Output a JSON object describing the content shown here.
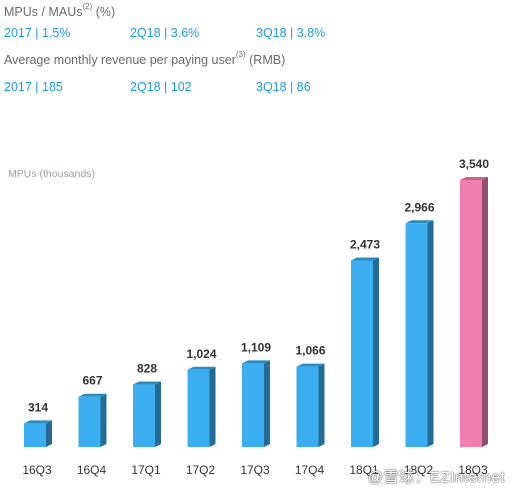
{
  "header": {
    "metric1_label": "MPUs / MAUs",
    "metric1_sup": "(2)",
    "metric1_unit": "(%)",
    "metric1_values": [
      "2017 | 1.5%",
      "2Q18 | 3.6%",
      "3Q18 | 3.8%"
    ],
    "metric2_label": "Average monthly revenue per paying user",
    "metric2_sup": "(3)",
    "metric2_unit": "(RMB)",
    "metric2_values": [
      "2017 | 185",
      "2Q18 | 102",
      "3Q18 | 86"
    ]
  },
  "watermark": "@雪球：EZInternet",
  "colors": {
    "bar": "#3aaef0",
    "highlight": "#f07fb0",
    "accent_text": "#1e9be0"
  },
  "chart_data": {
    "type": "bar",
    "ylabel": "MPUs (thousands)",
    "categories": [
      "16Q3",
      "16Q4",
      "17Q1",
      "17Q2",
      "17Q3",
      "17Q4",
      "18Q1",
      "18Q2",
      "18Q3"
    ],
    "values": [
      314,
      667,
      828,
      1024,
      1109,
      1066,
      2473,
      2966,
      3540
    ],
    "data_labels": [
      "314",
      "667",
      "828",
      "1,024",
      "1,109",
      "1,066",
      "2,473",
      "2,966",
      "3,540"
    ],
    "highlight_index": 8,
    "ylim": [
      0,
      3540
    ],
    "grid": false,
    "legend": "none"
  }
}
